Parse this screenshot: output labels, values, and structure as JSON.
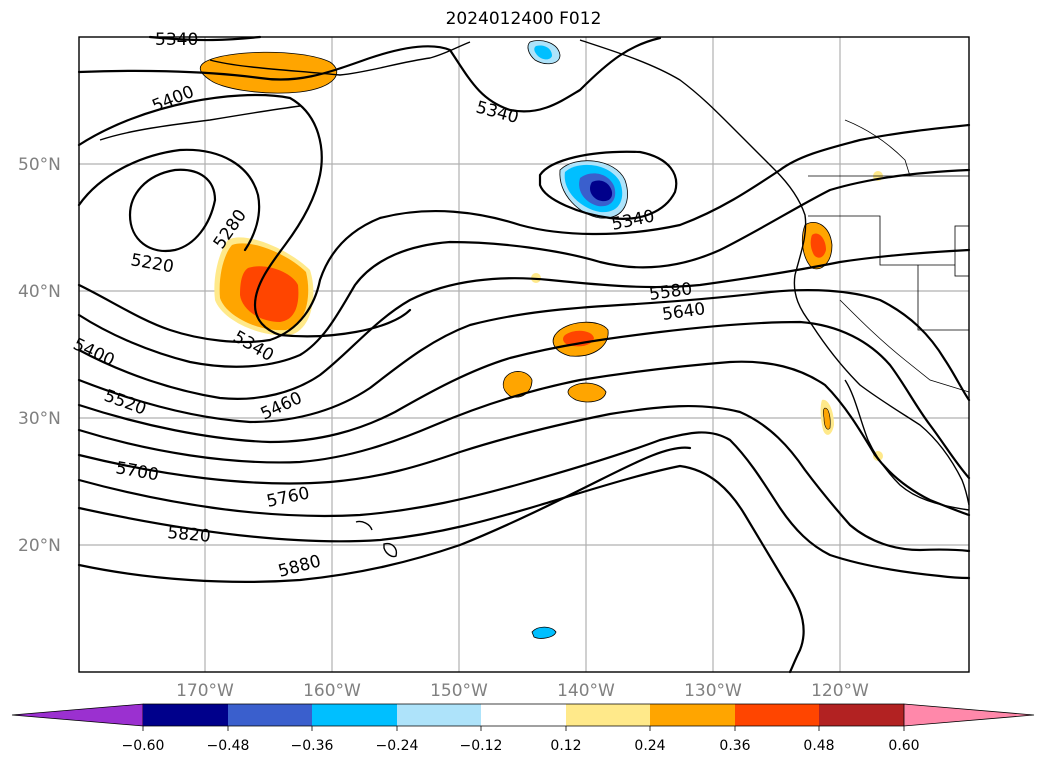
{
  "title": "2024012400 F012",
  "lat_labels": [
    "50°N",
    "40°N",
    "30°N",
    "20°N"
  ],
  "lon_labels": [
    "170°W",
    "160°W",
    "150°W",
    "140°W",
    "130°W",
    "120°W"
  ],
  "contour_labels": [
    "5340",
    "5400",
    "5280",
    "5220",
    "5340",
    "5340",
    "5340",
    "5580",
    "5640",
    "5400",
    "5520",
    "5460",
    "5700",
    "5760",
    "5820",
    "5880"
  ],
  "colorbar": {
    "ticks": [
      "−0.60",
      "−0.48",
      "−0.36",
      "−0.24",
      "−0.12",
      "0.12",
      "0.24",
      "0.36",
      "0.48",
      "0.60"
    ],
    "colors": [
      "#9b30d0",
      "#00008b",
      "#3a5fcd",
      "#00bfff",
      "#aee3fa",
      "#ffffff",
      "#ffe98a",
      "#ffa500",
      "#ff4500",
      "#b22222",
      "#ff88aa"
    ]
  },
  "map_extent": {
    "lon_min": -180,
    "lon_max": -110,
    "lat_min": 10,
    "lat_max": 60
  }
}
